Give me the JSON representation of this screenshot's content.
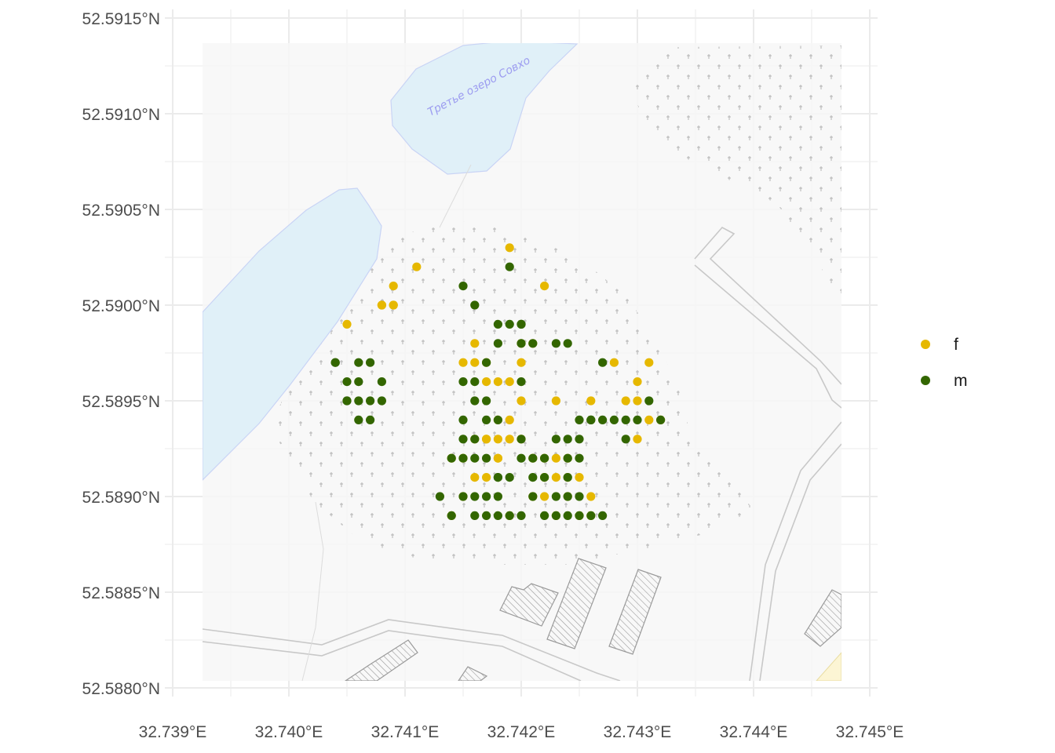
{
  "map": {
    "lake_label": "Третье озеро Совхо",
    "colors": {
      "panel_background": "#ffffff",
      "gridline": "#ebebeb",
      "tile_background": "#f7f7f7",
      "water_fill": "#e0f0f8",
      "water_stroke": "#c9d4f5",
      "road": "#c8c8c8",
      "cemetery_marker": "#b3b3b3",
      "building_hatch": "#9a9a9a",
      "sand": "#fcf5d4"
    }
  },
  "chart_data": {
    "type": "scatter",
    "title": "",
    "xlabel": "",
    "ylabel": "",
    "xlim": [
      32.739,
      32.745
    ],
    "ylim": [
      52.588,
      52.5915
    ],
    "x_ticks": [
      32.739,
      32.74,
      32.741,
      32.742,
      32.743,
      32.744,
      32.745
    ],
    "x_tick_labels": [
      "32.739°E",
      "32.740°E",
      "32.741°E",
      "32.742°E",
      "32.743°E",
      "32.744°E",
      "32.745°E"
    ],
    "y_ticks": [
      52.588,
      52.5885,
      52.589,
      52.5895,
      52.59,
      52.5905,
      52.591,
      52.5915
    ],
    "y_tick_labels": [
      "52.5880°N",
      "52.5885°N",
      "52.5890°N",
      "52.5895°N",
      "52.5900°N",
      "52.5905°N",
      "52.5910°N",
      "52.5915°N"
    ],
    "grid": true,
    "legend_position": "right",
    "series": [
      {
        "name": "f",
        "color": "#e6b800",
        "points": [
          [
            32.7419,
            52.5903
          ],
          [
            32.7411,
            52.5902
          ],
          [
            32.7422,
            52.5901
          ],
          [
            32.7409,
            52.5901
          ],
          [
            32.7408,
            52.59
          ],
          [
            32.7408,
            52.59
          ],
          [
            32.7409,
            52.59
          ],
          [
            32.7405,
            52.5899
          ],
          [
            32.7409,
            52.59
          ],
          [
            32.742,
            52.5898
          ],
          [
            32.7421,
            52.5898
          ],
          [
            32.7416,
            52.5898
          ],
          [
            32.7415,
            52.5897
          ],
          [
            32.7416,
            52.5897
          ],
          [
            32.7417,
            52.5896
          ],
          [
            32.7418,
            52.5896
          ],
          [
            32.7417,
            52.5897
          ],
          [
            32.742,
            52.5897
          ],
          [
            32.7419,
            52.5896
          ],
          [
            32.7428,
            52.5897
          ],
          [
            32.7431,
            52.5897
          ],
          [
            32.743,
            52.5896
          ],
          [
            32.742,
            52.5895
          ],
          [
            32.7419,
            52.5894
          ],
          [
            32.7418,
            52.5893
          ],
          [
            32.7417,
            52.5893
          ],
          [
            32.7416,
            52.5893
          ],
          [
            32.7418,
            52.5894
          ],
          [
            32.7423,
            52.5895
          ],
          [
            32.7426,
            52.5895
          ],
          [
            32.7429,
            52.5895
          ],
          [
            32.743,
            52.5895
          ],
          [
            32.7431,
            52.5894
          ],
          [
            32.7432,
            52.5894
          ],
          [
            32.743,
            52.5893
          ],
          [
            32.7414,
            52.5892
          ],
          [
            32.7415,
            52.5892
          ],
          [
            32.7416,
            52.5891
          ],
          [
            32.7417,
            52.5891
          ],
          [
            32.7418,
            52.5892
          ],
          [
            32.7419,
            52.5893
          ],
          [
            32.742,
            52.5893
          ],
          [
            32.7421,
            52.5892
          ],
          [
            32.7422,
            52.5891
          ],
          [
            32.7423,
            52.5891
          ],
          [
            32.7424,
            52.5891
          ],
          [
            32.7425,
            52.5891
          ],
          [
            32.7421,
            52.589
          ],
          [
            32.7422,
            52.589
          ],
          [
            32.7424,
            52.589
          ],
          [
            32.7426,
            52.589
          ],
          [
            32.7415,
            52.589
          ],
          [
            32.7414,
            52.5889
          ],
          [
            32.7419,
            52.5889
          ],
          [
            32.7423,
            52.5889
          ],
          [
            32.7425,
            52.5889
          ],
          [
            32.7426,
            52.5889
          ],
          [
            32.7422,
            52.5892
          ],
          [
            32.7418,
            52.5892
          ],
          [
            32.7417,
            52.5893
          ],
          [
            32.7423,
            52.5892
          ],
          [
            32.7424,
            52.5892
          ]
        ]
      },
      {
        "name": "m",
        "color": "#336600",
        "points": [
          [
            32.7419,
            52.5902
          ],
          [
            32.7415,
            52.5901
          ],
          [
            32.7416,
            52.59
          ],
          [
            32.742,
            52.5899
          ],
          [
            32.7419,
            52.5899
          ],
          [
            32.7418,
            52.5899
          ],
          [
            32.742,
            52.5899
          ],
          [
            32.742,
            52.5898
          ],
          [
            32.7421,
            52.5898
          ],
          [
            32.7423,
            52.5898
          ],
          [
            32.7424,
            52.5898
          ],
          [
            32.7418,
            52.5898
          ],
          [
            32.7417,
            52.5897
          ],
          [
            32.742,
            52.5896
          ],
          [
            32.7427,
            52.5897
          ],
          [
            32.7404,
            52.5897
          ],
          [
            32.7404,
            52.5897
          ],
          [
            32.7405,
            52.5896
          ],
          [
            32.7406,
            52.5897
          ],
          [
            32.7407,
            52.5897
          ],
          [
            32.7406,
            52.5896
          ],
          [
            32.7408,
            52.5896
          ],
          [
            32.7408,
            52.5895
          ],
          [
            32.7405,
            52.5895
          ],
          [
            32.7406,
            52.5895
          ],
          [
            32.7407,
            52.5894
          ],
          [
            32.7405,
            52.5895
          ],
          [
            32.7406,
            52.5894
          ],
          [
            32.7407,
            52.5895
          ],
          [
            32.7415,
            52.5896
          ],
          [
            32.7416,
            52.5896
          ],
          [
            32.7417,
            52.5895
          ],
          [
            32.7416,
            52.5895
          ],
          [
            32.7415,
            52.5894
          ],
          [
            32.7418,
            52.5894
          ],
          [
            32.7417,
            52.5894
          ],
          [
            32.7416,
            52.5893
          ],
          [
            32.7415,
            52.5893
          ],
          [
            32.7414,
            52.5892
          ],
          [
            32.7415,
            52.5892
          ],
          [
            32.7416,
            52.5892
          ],
          [
            32.7417,
            52.5892
          ],
          [
            32.7418,
            52.5891
          ],
          [
            32.7419,
            52.5891
          ],
          [
            32.742,
            52.5892
          ],
          [
            32.7421,
            52.5892
          ],
          [
            32.742,
            52.5893
          ],
          [
            32.7422,
            52.5892
          ],
          [
            32.7423,
            52.5893
          ],
          [
            32.7424,
            52.5892
          ],
          [
            32.7424,
            52.5893
          ],
          [
            32.7425,
            52.5894
          ],
          [
            32.7426,
            52.5894
          ],
          [
            32.7427,
            52.5894
          ],
          [
            32.7428,
            52.5894
          ],
          [
            32.7429,
            52.5894
          ],
          [
            32.743,
            52.5894
          ],
          [
            32.7431,
            52.5895
          ],
          [
            32.7432,
            52.5894
          ],
          [
            32.7426,
            52.5894
          ],
          [
            32.7425,
            52.5893
          ],
          [
            32.7424,
            52.5891
          ],
          [
            32.7425,
            52.5892
          ],
          [
            32.7429,
            52.5893
          ],
          [
            32.7413,
            52.589
          ],
          [
            32.7414,
            52.5889
          ],
          [
            32.7415,
            52.589
          ],
          [
            32.7416,
            52.5889
          ],
          [
            32.7417,
            52.5889
          ],
          [
            32.7418,
            52.5889
          ],
          [
            32.7419,
            52.5889
          ],
          [
            32.742,
            52.5889
          ],
          [
            32.7422,
            52.5889
          ],
          [
            32.7423,
            52.5889
          ],
          [
            32.7424,
            52.5889
          ],
          [
            32.7425,
            52.5889
          ],
          [
            32.7426,
            52.5889
          ],
          [
            32.7427,
            52.5889
          ],
          [
            32.7416,
            52.589
          ],
          [
            32.7418,
            52.5891
          ],
          [
            32.7421,
            52.5891
          ],
          [
            32.7422,
            52.5891
          ],
          [
            32.7421,
            52.589
          ],
          [
            32.7423,
            52.589
          ],
          [
            32.7424,
            52.589
          ],
          [
            32.7425,
            52.589
          ],
          [
            32.7418,
            52.589
          ],
          [
            32.7417,
            52.589
          ]
        ]
      }
    ]
  }
}
